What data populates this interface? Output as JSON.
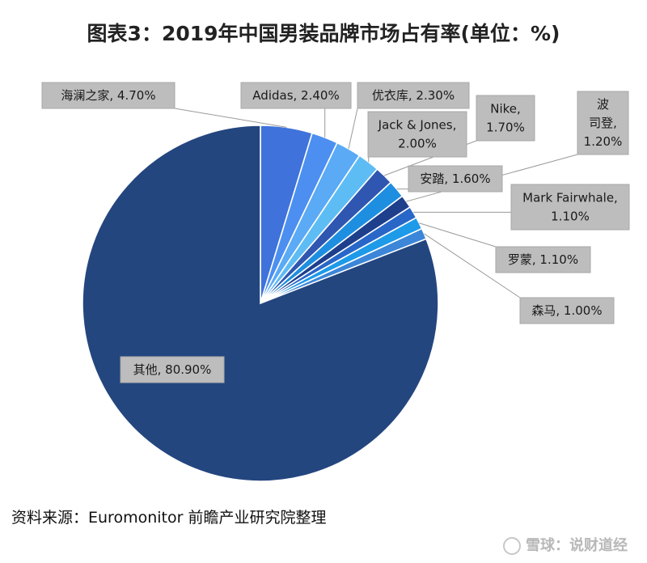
{
  "title": "图表3：2019年中国男装品牌市场占有率(单位：%)",
  "source": "资料来源：Euromonitor  前瞻产业研究院整理",
  "brand_mark": "雪球：说财道经",
  "chart_data": {
    "type": "pie",
    "title": "图表3：2019年中国男装品牌市场占有率(单位：%)",
    "unit": "%",
    "slices": [
      {
        "label": "海澜之家",
        "value": 4.7,
        "display": "海澜之家, 4.70%",
        "color": "#3f73db"
      },
      {
        "label": "Adidas",
        "value": 2.4,
        "display": "Adidas, 2.40%",
        "color": "#4c8ff0"
      },
      {
        "label": "优衣库",
        "value": 2.3,
        "display": "优衣库, 2.30%",
        "color": "#5aaaf5"
      },
      {
        "label": "Jack & Jones",
        "value": 2.0,
        "display": "Jack & Jones, 2.00%",
        "color": "#5ebcf4"
      },
      {
        "label": "Nike",
        "value": 1.7,
        "display": "Nike, 1.70%",
        "color": "#2f56b0"
      },
      {
        "label": "安踏",
        "value": 1.6,
        "display": "安踏, 1.60%",
        "color": "#1e8fe0"
      },
      {
        "label": "波司登",
        "value": 1.2,
        "display": "波司登, 1.20%",
        "color": "#1e3f8c"
      },
      {
        "label": "Mark Fairwhale",
        "value": 1.1,
        "display": "Mark Fairwhale, 1.10%",
        "color": "#2867c8"
      },
      {
        "label": "罗蒙",
        "value": 1.1,
        "display": "罗蒙, 1.10%",
        "color": "#1d9ae8"
      },
      {
        "label": "森马",
        "value": 1.0,
        "display": "森马, 1.00%",
        "color": "#3b86d8"
      },
      {
        "label": "其他",
        "value": 80.9,
        "display": "其他, 80.90%",
        "color": "#24467f"
      }
    ],
    "legend": "none",
    "labels": "callout boxes with leader lines"
  }
}
